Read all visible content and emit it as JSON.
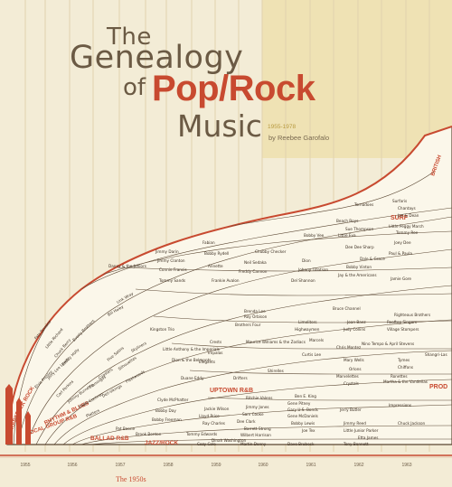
{
  "title": {
    "the": "The",
    "genealogy": "Genealogy",
    "of": "of",
    "poprock": "Pop/Rock",
    "music": "Music",
    "years": "1955-1978",
    "author": "by Reebee Garofalo"
  },
  "axis": {
    "ticks": [
      "1955",
      "1956",
      "1957",
      "1958",
      "1959",
      "1960",
      "1961",
      "1962",
      "1963"
    ],
    "decade_label": "The 1950s"
  },
  "genres": [
    {
      "label": "SURF"
    },
    {
      "label": "BRITISH"
    },
    {
      "label": "FOLK ROCK"
    },
    {
      "label": "UPTOWN R&B"
    },
    {
      "label": "RHYTHM & BLUES"
    },
    {
      "label": "BALLAD R&B"
    },
    {
      "label": "JAZZ/ROCK"
    },
    {
      "label": "VOCAL GROUP R&B"
    },
    {
      "label": "ROCKABILLY"
    },
    {
      "label": "PROD"
    }
  ],
  "artists": [
    "Tornadoes",
    "Surfaris",
    "Chantays",
    "Beach Boys",
    "Jan & Dean",
    "Dale & Grace",
    "Sue Thompson",
    "Little Peggy March",
    "Tommy Roe",
    "Little Eva",
    "Dee Dee Sharp",
    "Paul & Paula",
    "Joey Dee",
    "Bobby Vinton",
    "Jay & the Americans",
    "Jamie Gore",
    "Bobby Vee",
    "Dion",
    "Johnny Tillotson",
    "Del Shannon",
    "Chubby Checker",
    "Neil Sedaka",
    "Freddy Cannon",
    "Frankie Avalon",
    "Fabian",
    "Bobby Rydell",
    "Annette",
    "Connie Francis",
    "Tommy Sands",
    "Jimmy Clanton",
    "Jimmy Darin",
    "Danny & the Juniors",
    "Bruce Channel",
    "Brenda Lee",
    "Roy Orbison",
    "Brothers Four",
    "Limeliters",
    "Highwaymen",
    "Joan Baez",
    "Judy Collins",
    "Rooftop Singers",
    "Village Stompers",
    "Righteous Brothers",
    "Crests",
    "Impalas",
    "Elegants",
    "Maurice Williams & the Zodiacs",
    "Marcels",
    "Curtis Lee",
    "Chris Montez",
    "Kingston Trio",
    "Nino Tempo & April Stevens",
    "Mary Wells",
    "Orlons",
    "Tymes",
    "Chiffons",
    "Shangri-Las",
    "Ronettes",
    "Crystals",
    "Marvelettes",
    "Martha & the Vandellas",
    "Shirelles",
    "Drifters",
    "Ben E. King",
    "Gene Pitney",
    "Gary U.S. Bonds",
    "Gene McDaniels",
    "Jerry Butler",
    "Impressions",
    "Chuck Jackson",
    "Jackie Wilson",
    "Lloyd Price",
    "Ray Charles",
    "Bobby Freeman",
    "Bobby Day",
    "Clyde McPhatter",
    "Ritchie Valens",
    "Jimmy Jones",
    "Sam Cooke",
    "Dee Clark",
    "Barrett Strong",
    "Wilbert Harrison",
    "Bobby Lewis",
    "Joe Tex",
    "Jimmy Reed",
    "Little Junior Parker",
    "Etta James",
    "Tommy Edwards",
    "Dinah Washington",
    "Brook Benton",
    "Cozy Cole",
    "Martin Denny",
    "Dave Brubeck",
    "Tony Bennett",
    "Pat Boone",
    "Everly Brothers",
    "Buddy Holly",
    "Elvis Presley",
    "Jerry Lee Lewis",
    "Carl Perkins",
    "Johnny Burnette",
    "Eddie Cochran",
    "Platters",
    "Flamingos",
    "Coasters",
    "Dell-Vikings",
    "Five Satins",
    "Silhouettes",
    "Fleetwoods",
    "Skyliners",
    "Dion & the Belmonts",
    "Little Anthony & the Imperials",
    "Duane Eddy",
    "Link Wray",
    "Bill Haley",
    "Fats Domino",
    "Little Richard",
    "Chuck Berry"
  ],
  "colors": {
    "accent": "#c84a30",
    "background": "#f3ecd6",
    "panel": "#efe2b4",
    "ink": "#3a2d20"
  }
}
